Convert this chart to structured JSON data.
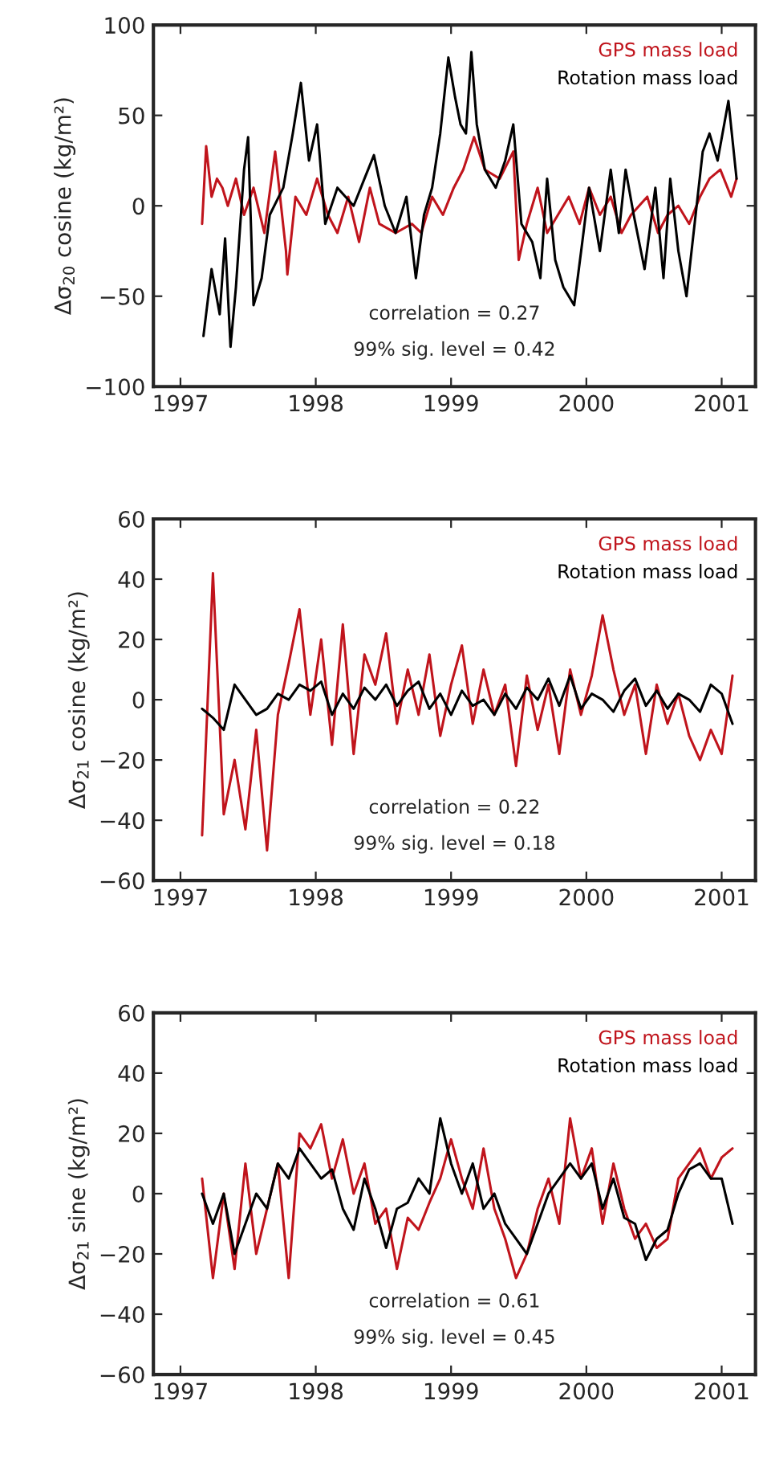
{
  "chart_data": [
    {
      "type": "line",
      "ylabel": "Δσ$_{20}$ cosine (kg/m²)",
      "xlim": [
        1996.8,
        2001.25
      ],
      "xticks": [
        1997,
        1998,
        1999,
        2000,
        2001
      ],
      "ylim": [
        -100,
        100
      ],
      "yticks": [
        {
          "value": -100,
          "label": "−100"
        },
        {
          "value": -50,
          "label": "−50"
        },
        0,
        50,
        100
      ],
      "legend": "top right",
      "grid": false,
      "annotations": [
        "correlation = 0.27",
        "99% sig. level = 0.42"
      ],
      "series": [
        {
          "name": "GPS mass load",
          "color": "#c0141c",
          "x": [
            1997.16,
            1997.19,
            1997.23,
            1997.27,
            1997.31,
            1997.35,
            1997.41,
            1997.47,
            1997.54,
            1997.62,
            1997.7,
            1997.78,
            1997.79,
            1997.85,
            1997.93,
            1998.01,
            1998.09,
            1998.16,
            1998.24,
            1998.32,
            1998.4,
            1998.47,
            1998.59,
            1998.71,
            1998.78,
            1998.86,
            1998.94,
            1999.02,
            1999.09,
            1999.17,
            1999.25,
            1999.36,
            1999.46,
            1999.5,
            1999.56,
            1999.64,
            1999.71,
            1999.79,
            1999.87,
            1999.95,
            2000.02,
            2000.1,
            2000.18,
            2000.26,
            2000.33,
            2000.45,
            2000.53,
            2000.6,
            2000.68,
            2000.76,
            2000.84,
            2000.91,
            2000.99,
            2001.07,
            2001.11
          ],
          "values": [
            -10,
            33,
            5,
            15,
            10,
            0,
            15,
            -5,
            10,
            -15,
            30,
            -25,
            -38,
            5,
            -5,
            15,
            -5,
            -15,
            5,
            -20,
            10,
            -10,
            -15,
            -10,
            -15,
            5,
            -5,
            10,
            20,
            38,
            20,
            15,
            30,
            -30,
            -10,
            10,
            -15,
            -5,
            5,
            -10,
            10,
            -5,
            5,
            -15,
            -5,
            5,
            -15,
            -5,
            0,
            -10,
            5,
            15,
            20,
            5,
            15
          ]
        },
        {
          "name": "Rotation mass load",
          "color": "#000000",
          "x": [
            1997.17,
            1997.23,
            1997.29,
            1997.33,
            1997.37,
            1997.41,
            1997.47,
            1997.5,
            1997.54,
            1997.6,
            1997.66,
            1997.76,
            1997.83,
            1997.89,
            1997.95,
            1998.01,
            1998.07,
            1998.16,
            1998.28,
            1998.36,
            1998.43,
            1998.51,
            1998.59,
            1998.67,
            1998.74,
            1998.8,
            1998.86,
            1998.92,
            1998.98,
            1999.03,
            1999.07,
            1999.11,
            1999.15,
            1999.19,
            1999.25,
            1999.33,
            1999.4,
            1999.46,
            1999.52,
            1999.6,
            1999.66,
            1999.71,
            1999.77,
            1999.83,
            1999.91,
            1999.97,
            2000.02,
            2000.1,
            2000.18,
            2000.24,
            2000.29,
            2000.35,
            2000.43,
            2000.51,
            2000.57,
            2000.62,
            2000.68,
            2000.74,
            2000.8,
            2000.86,
            2000.91,
            2000.97,
            2001.05,
            2001.11
          ],
          "values": [
            -72,
            -35,
            -60,
            -18,
            -78,
            -45,
            20,
            38,
            -55,
            -40,
            -5,
            10,
            40,
            68,
            25,
            45,
            -10,
            10,
            0,
            15,
            28,
            0,
            -15,
            5,
            -40,
            -5,
            10,
            40,
            82,
            60,
            45,
            40,
            85,
            45,
            20,
            10,
            25,
            45,
            -10,
            -20,
            -40,
            15,
            -30,
            -45,
            -55,
            -20,
            10,
            -25,
            20,
            -15,
            20,
            -5,
            -35,
            10,
            -40,
            15,
            -25,
            -50,
            -10,
            30,
            40,
            25,
            58,
            15
          ]
        }
      ]
    },
    {
      "type": "line",
      "ylabel": "Δσ$_{21}$ cosine (kg/m²)",
      "xlim": [
        1996.8,
        2001.25
      ],
      "xticks": [
        1997,
        1998,
        1999,
        2000,
        2001
      ],
      "ylim": [
        -60,
        60
      ],
      "yticks": [
        {
          "value": -60,
          "label": "−60"
        },
        {
          "value": -40,
          "label": "−40"
        },
        {
          "value": -20,
          "label": "−20"
        },
        0,
        20,
        40,
        60
      ],
      "legend": "top right",
      "grid": false,
      "annotations": [
        "correlation = 0.22",
        "99% sig. level = 0.18"
      ],
      "x": [
        1997.16,
        1997.24,
        1997.32,
        1997.4,
        1997.48,
        1997.56,
        1997.64,
        1997.72,
        1997.8,
        1997.88,
        1997.96,
        1998.04,
        1998.12,
        1998.2,
        1998.28,
        1998.36,
        1998.44,
        1998.52,
        1998.6,
        1998.68,
        1998.76,
        1998.84,
        1998.92,
        1999.0,
        1999.08,
        1999.16,
        1999.24,
        1999.32,
        1999.4,
        1999.48,
        1999.56,
        1999.64,
        1999.72,
        1999.8,
        1999.88,
        1999.96,
        2000.04,
        2000.12,
        2000.2,
        2000.28,
        2000.36,
        2000.44,
        2000.52,
        2000.6,
        2000.68,
        2000.76,
        2000.84,
        2000.92,
        2001.0,
        2001.08
      ],
      "series": [
        {
          "name": "GPS mass load",
          "color": "#c0141c",
          "values": [
            -45,
            42,
            -38,
            -20,
            -43,
            -10,
            -50,
            -5,
            12,
            30,
            -5,
            20,
            -15,
            25,
            -18,
            15,
            5,
            22,
            -8,
            10,
            -5,
            15,
            -12,
            5,
            18,
            -8,
            10,
            -5,
            5,
            -22,
            8,
            -10,
            5,
            -18,
            10,
            -5,
            8,
            28,
            10,
            -5,
            5,
            -18,
            5,
            -8,
            2,
            -12,
            -20,
            -10,
            -18,
            8
          ]
        },
        {
          "name": "Rotation mass load",
          "color": "#000000",
          "values": [
            -3,
            -6,
            -10,
            5,
            0,
            -5,
            -3,
            2,
            0,
            5,
            3,
            6,
            -5,
            2,
            -3,
            4,
            0,
            5,
            -2,
            3,
            6,
            -3,
            2,
            -5,
            3,
            -2,
            0,
            -5,
            2,
            -3,
            4,
            0,
            7,
            -2,
            8,
            -3,
            2,
            0,
            -4,
            3,
            7,
            -2,
            3,
            -3,
            2,
            0,
            -4,
            5,
            2,
            -8
          ]
        }
      ]
    },
    {
      "type": "line",
      "ylabel": "Δσ$_{21}$ sine (kg/m²)",
      "xlim": [
        1996.8,
        2001.25
      ],
      "xticks": [
        1997,
        1998,
        1999,
        2000,
        2001
      ],
      "ylim": [
        -60,
        60
      ],
      "yticks": [
        {
          "value": -60,
          "label": "−60"
        },
        {
          "value": -40,
          "label": "−40"
        },
        {
          "value": -20,
          "label": "−20"
        },
        0,
        20,
        40,
        60
      ],
      "legend": "top right",
      "grid": false,
      "annotations": [
        "correlation = 0.61",
        "99% sig. level = 0.45"
      ],
      "x": [
        1997.16,
        1997.24,
        1997.32,
        1997.4,
        1997.48,
        1997.56,
        1997.64,
        1997.72,
        1997.8,
        1997.88,
        1997.96,
        1998.04,
        1998.12,
        1998.2,
        1998.28,
        1998.36,
        1998.44,
        1998.52,
        1998.6,
        1998.68,
        1998.76,
        1998.84,
        1998.92,
        1999.0,
        1999.08,
        1999.16,
        1999.24,
        1999.32,
        1999.4,
        1999.48,
        1999.56,
        1999.64,
        1999.72,
        1999.8,
        1999.88,
        1999.96,
        2000.04,
        2000.12,
        2000.2,
        2000.28,
        2000.36,
        2000.44,
        2000.52,
        2000.6,
        2000.68,
        2000.76,
        2000.84,
        2000.92,
        2001.0,
        2001.08
      ],
      "series": [
        {
          "name": "GPS mass load",
          "color": "#c0141c",
          "values": [
            5,
            -28,
            0,
            -25,
            10,
            -20,
            -5,
            10,
            -28,
            20,
            15,
            23,
            5,
            18,
            0,
            10,
            -10,
            -5,
            -25,
            -8,
            -12,
            -3,
            5,
            18,
            5,
            -5,
            15,
            -5,
            -15,
            -28,
            -20,
            -5,
            5,
            -10,
            25,
            5,
            15,
            -10,
            10,
            -5,
            -15,
            -10,
            -18,
            -15,
            5,
            10,
            15,
            5,
            12,
            15
          ]
        },
        {
          "name": "Rotation mass load",
          "color": "#000000",
          "values": [
            0,
            -10,
            0,
            -20,
            -10,
            0,
            -5,
            10,
            5,
            15,
            10,
            5,
            8,
            -5,
            -12,
            5,
            -5,
            -18,
            -5,
            -3,
            5,
            0,
            25,
            10,
            0,
            10,
            -5,
            0,
            -10,
            -15,
            -20,
            -10,
            0,
            5,
            10,
            5,
            10,
            -5,
            5,
            -8,
            -10,
            -22,
            -15,
            -12,
            0,
            8,
            10,
            5,
            5,
            -10
          ]
        }
      ]
    }
  ]
}
